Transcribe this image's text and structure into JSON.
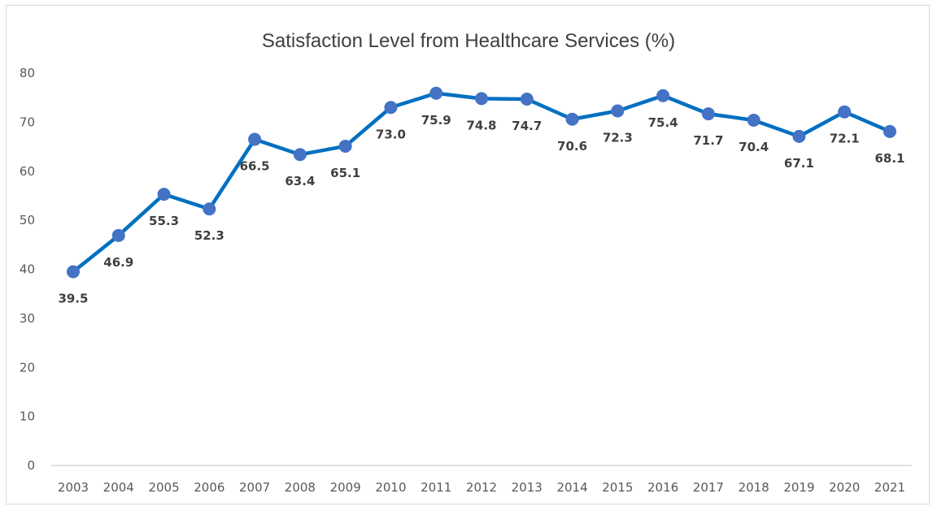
{
  "chart_data": {
    "type": "line",
    "title": "Satisfaction Level from Healthcare Services (%)",
    "xlabel": "",
    "ylabel": "",
    "x": [
      "2003",
      "2004",
      "2005",
      "2006",
      "2007",
      "2008",
      "2009",
      "2010",
      "2011",
      "2012",
      "2013",
      "2014",
      "2015",
      "2016",
      "2017",
      "2018",
      "2019",
      "2020",
      "2021"
    ],
    "series": [
      {
        "name": "Satisfaction Level",
        "values": [
          39.5,
          46.9,
          55.3,
          52.3,
          66.5,
          63.4,
          65.1,
          73.0,
          75.9,
          74.8,
          74.7,
          70.6,
          72.3,
          75.4,
          71.7,
          70.4,
          67.1,
          72.1,
          68.1
        ],
        "labels": [
          "39.5",
          "46.9",
          "55.3",
          "52.3",
          "66.5",
          "63.4",
          "65.1",
          "73.0",
          "75.9",
          "74.8",
          "74.7",
          "70.6",
          "72.3",
          "75.4",
          "71.7",
          "70.4",
          "67.1",
          "72.1",
          "68.1"
        ],
        "color": "#0070C0",
        "marker_color": "#4472C4"
      }
    ],
    "ylim": [
      0,
      80
    ],
    "yticks": [
      "0",
      "10",
      "20",
      "30",
      "40",
      "50",
      "60",
      "70",
      "80"
    ],
    "grid": false,
    "legend": "none",
    "label_position": "below"
  }
}
